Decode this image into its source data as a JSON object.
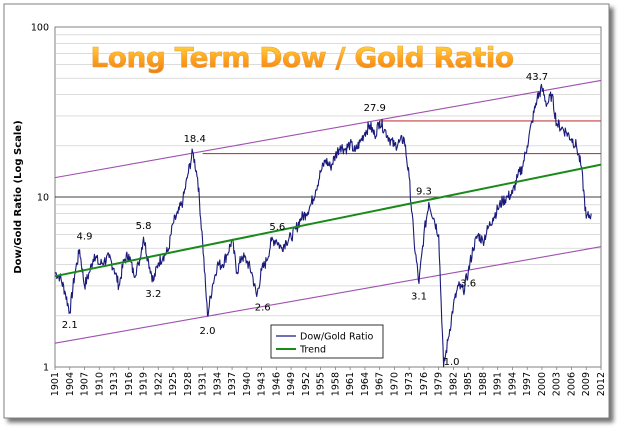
{
  "chart_data": {
    "type": "line",
    "title": "Long Term Dow / Gold Ratio",
    "ylabel": "Dow/Gold Ratio (Log Scale)",
    "xlabel": "",
    "y_scale": "log",
    "ylim": [
      1,
      100
    ],
    "xlim": [
      1901,
      2012
    ],
    "y_ticks": [
      1,
      10,
      100
    ],
    "y_tick_labels": [
      "1",
      "10",
      "100"
    ],
    "x_ticks": [
      1901,
      1904,
      1907,
      1910,
      1913,
      1916,
      1919,
      1922,
      1925,
      1928,
      1931,
      1934,
      1937,
      1940,
      1943,
      1946,
      1949,
      1952,
      1955,
      1958,
      1961,
      1964,
      1967,
      1970,
      1973,
      1976,
      1979,
      1982,
      1985,
      1988,
      1991,
      1994,
      1997,
      2000,
      2003,
      2006,
      2009,
      2012
    ],
    "grid": true,
    "legend": {
      "position": "bottom-center",
      "entries": [
        {
          "name": "Dow/Gold Ratio",
          "color": "#1a1a7a"
        },
        {
          "name": "Trend",
          "color": "#1a8a1a"
        }
      ]
    },
    "series": [
      {
        "name": "Dow/Gold Ratio",
        "color": "#1a1a7a",
        "x": [
          1901,
          1902,
          1903,
          1904,
          1905,
          1906,
          1907,
          1908,
          1909,
          1910,
          1911,
          1912,
          1913,
          1914,
          1915,
          1916,
          1917,
          1918,
          1919,
          1920,
          1921,
          1922,
          1923,
          1924,
          1925,
          1926,
          1927,
          1928,
          1929,
          1930,
          1931,
          1932,
          1933,
          1934,
          1935,
          1936,
          1937,
          1938,
          1939,
          1940,
          1941,
          1942,
          1943,
          1944,
          1945,
          1946,
          1947,
          1948,
          1949,
          1950,
          1951,
          1952,
          1953,
          1954,
          1955,
          1956,
          1957,
          1958,
          1959,
          1960,
          1961,
          1962,
          1963,
          1964,
          1965,
          1966,
          1967,
          1968,
          1969,
          1970,
          1971,
          1972,
          1973,
          1974,
          1975,
          1976,
          1977,
          1978,
          1979,
          1980,
          1981,
          1982,
          1983,
          1984,
          1985,
          1986,
          1987,
          1988,
          1989,
          1990,
          1991,
          1992,
          1993,
          1994,
          1995,
          1996,
          1997,
          1998,
          1999,
          2000,
          2001,
          2002,
          2003,
          2004,
          2005,
          2006,
          2007,
          2008,
          2009,
          2010
        ],
        "values": [
          3.6,
          3.4,
          2.8,
          2.1,
          3.5,
          4.9,
          3.0,
          3.6,
          4.6,
          4.0,
          4.2,
          4.4,
          3.8,
          3.0,
          4.2,
          4.6,
          3.5,
          4.0,
          5.8,
          4.2,
          3.2,
          4.1,
          4.5,
          4.8,
          7.0,
          8.0,
          9.5,
          13.5,
          18.4,
          13.0,
          5.5,
          2.0,
          3.0,
          4.0,
          4.0,
          4.6,
          5.6,
          3.6,
          4.5,
          4.2,
          3.6,
          2.6,
          3.7,
          4.2,
          5.5,
          5.6,
          5.0,
          5.5,
          5.8,
          6.5,
          7.5,
          8.0,
          9.0,
          11.0,
          14.0,
          16.5,
          15.0,
          17.5,
          20.0,
          19.0,
          20.5,
          18.5,
          21.0,
          24.0,
          26.5,
          23.0,
          27.9,
          25.0,
          22.0,
          20.0,
          21.0,
          22.0,
          13.0,
          5.5,
          3.1,
          6.0,
          9.3,
          7.5,
          6.0,
          1.0,
          1.5,
          2.3,
          3.0,
          2.8,
          3.6,
          5.0,
          6.0,
          5.5,
          6.5,
          7.5,
          8.5,
          9.5,
          10.0,
          10.5,
          13.0,
          15.0,
          20.0,
          28.0,
          38.0,
          43.7,
          35.0,
          40.0,
          27.0,
          25.5,
          24.0,
          22.0,
          20.0,
          15.0,
          7.5,
          8.0
        ]
      },
      {
        "name": "Trend",
        "color": "#1a8a1a",
        "x": [
          1901,
          2012
        ],
        "values": [
          3.42,
          15.5
        ]
      }
    ],
    "channel_lines": [
      {
        "color": "#a050b0",
        "x": [
          1901,
          2012
        ],
        "values": [
          13.0,
          48.5
        ]
      },
      {
        "color": "#a050b0",
        "x": [
          1901,
          2012
        ],
        "values": [
          1.38,
          5.1
        ]
      }
    ],
    "horizontal_lines": [
      {
        "color": "#c04040",
        "value": 28.0,
        "x_start": 1967,
        "x_end": 2012
      },
      {
        "color": "#c04040",
        "value": 18.0,
        "x_start": 1931,
        "x_end": 2012
      },
      {
        "color": "#000000",
        "value": 10.0,
        "x_start": 1901,
        "x_end": 2012
      }
    ],
    "annotations": [
      {
        "text": "2.1",
        "x": 1904.0,
        "y": 2.1
      },
      {
        "text": "4.9",
        "x": 1907.0,
        "y": 4.9
      },
      {
        "text": "5.8",
        "x": 1919.0,
        "y": 5.8
      },
      {
        "text": "3.2",
        "x": 1921.0,
        "y": 3.2
      },
      {
        "text": "18.4",
        "x": 1929.4,
        "y": 18.4
      },
      {
        "text": "2.0",
        "x": 1932.0,
        "y": 2.0
      },
      {
        "text": "2.6",
        "x": 1942.0,
        "y": 2.6
      },
      {
        "text": "5.6",
        "x": 1946.2,
        "y": 5.6
      },
      {
        "text": "27.9",
        "x": 1966.0,
        "y": 27.9
      },
      {
        "text": "9.3",
        "x": 1976.0,
        "y": 9.3
      },
      {
        "text": "3.1",
        "x": 1975.0,
        "y": 3.1
      },
      {
        "text": "3.6",
        "x": 1985.0,
        "y": 3.6
      },
      {
        "text": "1.0",
        "x": 1980.0,
        "y": 1.0
      },
      {
        "text": "43.7",
        "x": 1999.0,
        "y": 43.7
      }
    ]
  }
}
